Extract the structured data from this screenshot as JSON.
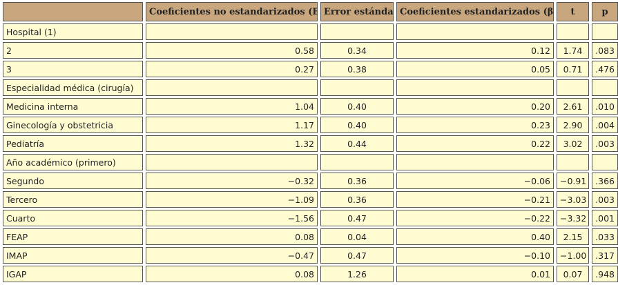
{
  "table": {
    "header": [
      "Coeficientes no estandarizados (B)",
      "Error estándar",
      "Coeficientes estandarizados (β)",
      "t",
      "p"
    ],
    "rows": [
      [
        "Hospital (1)"
      ],
      [
        "2",
        "0.58",
        "0.34",
        "0.12",
        "1.74",
        ".083"
      ],
      [
        "3",
        "0.27",
        "0.38",
        "0.05",
        "0.71",
        ".476"
      ],
      [
        "Especialidad médica (cirugía)"
      ],
      [
        "Medicina interna",
        "1.04",
        "0.40",
        "0.20",
        "2.61",
        ".010"
      ],
      [
        "Ginecología y obstetricia",
        "1.17",
        "0.40",
        "0.23",
        "2.90",
        ".004"
      ],
      [
        "Pediatría",
        "1.32",
        "0.44",
        "0.22",
        "3.02",
        ".003"
      ],
      [
        "Año académico (primero)"
      ],
      [
        "Segundo",
        "−0.32",
        "0.36",
        "−0.06",
        "−0.91",
        ".366"
      ],
      [
        "Tercero",
        "−1.09",
        "0.36",
        "−0.21",
        "−3.03",
        ".003"
      ],
      [
        "Cuarto",
        "−1.56",
        "0.47",
        "−0.22",
        "−3.32",
        ".001"
      ],
      [
        "FEAP",
        "0.08",
        "0.04",
        "0.40",
        "2.15",
        ".033"
      ],
      [
        "IMAP",
        "−0.47",
        "0.47",
        "−0.10",
        "−1.00",
        ".317"
      ],
      [
        "IGAP",
        "0.08",
        "1.26",
        "0.01",
        "0.07",
        ".948"
      ]
    ]
  }
}
